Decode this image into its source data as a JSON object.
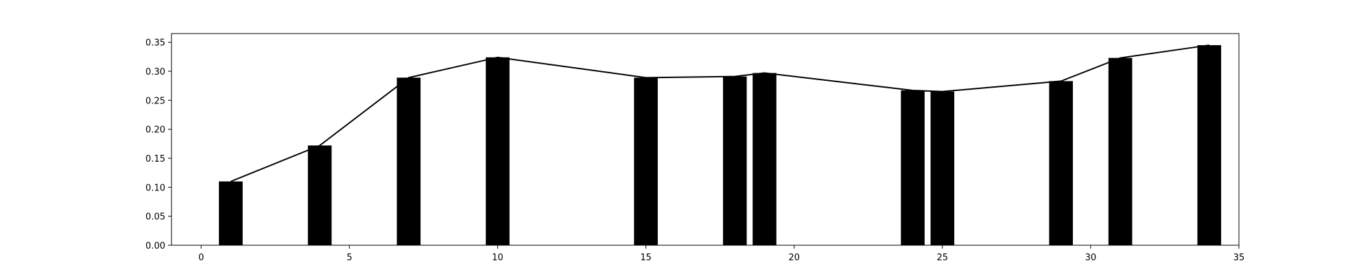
{
  "chart_data": {
    "type": "bar",
    "title": "",
    "xlabel": "",
    "ylabel": "",
    "xlim": [
      -1,
      35
    ],
    "ylim": [
      0,
      0.365
    ],
    "grid": false,
    "legend": "none",
    "bar_width": 0.8,
    "bar_color": "#000000",
    "line_color": "#000000",
    "x_ticks": [
      0,
      5,
      10,
      15,
      20,
      25,
      30,
      35
    ],
    "x_tick_labels": [
      "0",
      "5",
      "10",
      "15",
      "20",
      "25",
      "30",
      "35"
    ],
    "y_ticks": [
      0.0,
      0.05,
      0.1,
      0.15,
      0.2,
      0.25,
      0.3,
      0.35
    ],
    "y_tick_labels": [
      "0.00",
      "0.05",
      "0.10",
      "0.15",
      "0.20",
      "0.25",
      "0.30",
      "0.35"
    ],
    "series": [
      {
        "type": "bar",
        "x": [
          1,
          4,
          7,
          10,
          15,
          18,
          19,
          24,
          25,
          29,
          31,
          34
        ],
        "values": [
          0.11,
          0.172,
          0.289,
          0.324,
          0.289,
          0.291,
          0.297,
          0.267,
          0.265,
          0.283,
          0.323,
          0.345
        ]
      },
      {
        "type": "line",
        "x": [
          1,
          4,
          7,
          10,
          15,
          18,
          19,
          24,
          25,
          29,
          31,
          34
        ],
        "values": [
          0.11,
          0.172,
          0.289,
          0.324,
          0.289,
          0.291,
          0.297,
          0.267,
          0.265,
          0.283,
          0.323,
          0.345
        ]
      }
    ]
  }
}
